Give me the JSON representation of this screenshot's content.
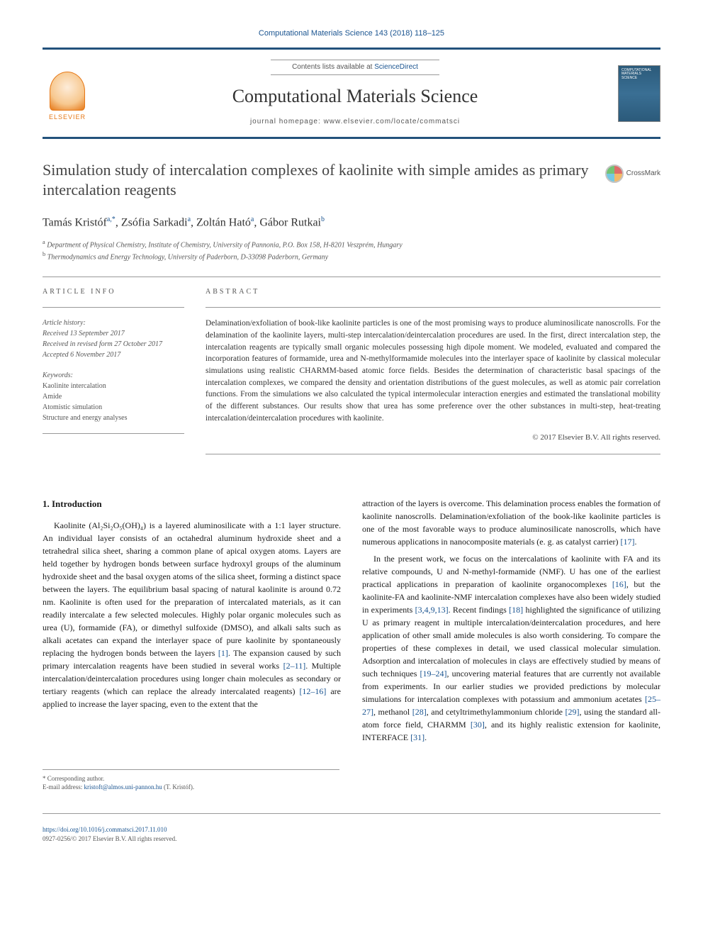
{
  "citation": "Computational Materials Science 143 (2018) 118–125",
  "header": {
    "publisher_name": "ELSEVIER",
    "contents_prefix": "Contents lists available at ",
    "contents_link": "ScienceDirect",
    "journal_title": "Computational Materials Science",
    "homepage_label": "journal homepage: ",
    "homepage_url": "www.elsevier.com/locate/commatsci",
    "cover_title": "COMPUTATIONAL MATERIALS SCIENCE"
  },
  "article": {
    "title": "Simulation study of intercalation complexes of kaolinite with simple amides as primary intercalation reagents",
    "crossmark_label": "CrossMark",
    "authors_html": "Tamás Kristóf",
    "author1": "Tamás Kristóf",
    "author1_sup": "a,*",
    "author2": "Zsófia Sarkadi",
    "author2_sup": "a",
    "author3": "Zoltán Ható",
    "author3_sup": "a",
    "author4": "Gábor Rutkai",
    "author4_sup": "b",
    "affiliations": {
      "a": "Department of Physical Chemistry, Institute of Chemistry, University of Pannonia, P.O. Box 158, H-8201 Veszprém, Hungary",
      "b": "Thermodynamics and Energy Technology, University of Paderborn, D-33098 Paderborn, Germany"
    }
  },
  "info": {
    "heading": "article info",
    "history_label": "Article history:",
    "history": [
      "Received 13 September 2017",
      "Received in revised form 27 October 2017",
      "Accepted 6 November 2017"
    ],
    "keywords_label": "Keywords:",
    "keywords": [
      "Kaolinite intercalation",
      "Amide",
      "Atomistic simulation",
      "Structure and energy analyses"
    ]
  },
  "abstract": {
    "heading": "abstract",
    "text": "Delamination/exfoliation of book-like kaolinite particles is one of the most promising ways to produce aluminosilicate nanoscrolls. For the delamination of the kaolinite layers, multi-step intercalation/deintercalation procedures are used. In the first, direct intercalation step, the intercalation reagents are typically small organic molecules possessing high dipole moment. We modeled, evaluated and compared the incorporation features of formamide, urea and N-methylformamide molecules into the interlayer space of kaolinite by classical molecular simulations using realistic CHARMM-based atomic force fields. Besides the determination of characteristic basal spacings of the intercalation complexes, we compared the density and orientation distributions of the guest molecules, as well as atomic pair correlation functions. From the simulations we also calculated the typical intermolecular interaction energies and estimated the translational mobility of the different substances. Our results show that urea has some preference over the other substances in multi-step, heat-treating intercalation/deintercalation procedures with kaolinite.",
    "copyright": "© 2017 Elsevier B.V. All rights reserved."
  },
  "body": {
    "section1_heading": "1. Introduction",
    "col1_p1": "Kaolinite (Al₂Si₂O₅(OH)₄) is a layered aluminosilicate with a 1:1 layer structure. An individual layer consists of an octahedral aluminum hydroxide sheet and a tetrahedral silica sheet, sharing a common plane of apical oxygen atoms. Layers are held together by hydrogen bonds between surface hydroxyl groups of the aluminum hydroxide sheet and the basal oxygen atoms of the silica sheet, forming a distinct space between the layers. The equilibrium basal spacing of natural kaolinite is around 0.72 nm. Kaolinite is often used for the preparation of intercalated materials, as it can readily intercalate a few selected molecules. Highly polar organic molecules such as urea (U), formamide (FA), or dimethyl sulfoxide (DMSO), and alkali salts such as alkali acetates can expand the interlayer space of pure kaolinite by spontaneously replacing the hydrogen bonds between the layers ",
    "col1_ref1": "[1]",
    "col1_p1b": ". The expansion caused by such primary intercalation reagents have been studied in several works ",
    "col1_ref2": "[2–11]",
    "col1_p1c": ". Multiple intercalation/deintercalation procedures using longer chain molecules as secondary or tertiary reagents (which can replace the already intercalated reagents) ",
    "col1_ref3": "[12–16]",
    "col1_p1d": " are applied to increase the layer spacing, even to the extent that the",
    "col2_p1a": "attraction of the layers is overcome. This delamination process enables the formation of kaolinite nanoscrolls. Delamination/exfoliation of the book-like kaolinite particles is one of the most favorable ways to produce aluminosilicate nanoscrolls, which have numerous applications in nanocomposite materials (e. g. as catalyst carrier) ",
    "col2_ref1": "[17]",
    "col2_p1b": ".",
    "col2_p2a": "In the present work, we focus on the intercalations of kaolinite with FA and its relative compounds, U and N-methyl-formamide (NMF). U has one of the earliest practical applications in preparation of kaolinite organocomplexes ",
    "col2_ref2": "[16]",
    "col2_p2b": ", but the kaolinite-FA and kaolinite-NMF intercalation complexes have also been widely studied in experiments ",
    "col2_ref3": "[3,4,9,13]",
    "col2_p2c": ". Recent findings ",
    "col2_ref4": "[18]",
    "col2_p2d": " highlighted the significance of utilizing U as primary reagent in multiple intercalation/deintercalation procedures, and here application of other small amide molecules is also worth considering. To compare the properties of these complexes in detail, we used classical molecular simulation. Adsorption and intercalation of molecules in clays are effectively studied by means of such techniques ",
    "col2_ref5": "[19–24]",
    "col2_p2e": ", uncovering material features that are currently not available from experiments. In our earlier studies we provided predictions by molecular simulations for intercalation complexes with potassium and ammonium acetates ",
    "col2_ref6": "[25–27]",
    "col2_p2f": ", methanol ",
    "col2_ref7": "[28]",
    "col2_p2g": ", and cetyltrimethylammonium chloride ",
    "col2_ref8": "[29]",
    "col2_p2h": ", using the standard all-atom force field, CHARMM ",
    "col2_ref9": "[30]",
    "col2_p2i": ", and its highly realistic extension for kaolinite, INTERFACE ",
    "col2_ref10": "[31]",
    "col2_p2j": "."
  },
  "footnotes": {
    "corr_label": "* Corresponding author.",
    "email_label": "E-mail address: ",
    "email": "kristoft@almos.uni-pannon.hu",
    "email_name": " (T. Kristóf)."
  },
  "doi": {
    "url": "https://doi.org/10.1016/j.commatsci.2017.11.010",
    "issn_line": "0927-0256/© 2017 Elsevier B.V. All rights reserved."
  },
  "colors": {
    "link": "#1a5490",
    "rule": "#23527c",
    "elsevier_orange": "#e67817"
  }
}
